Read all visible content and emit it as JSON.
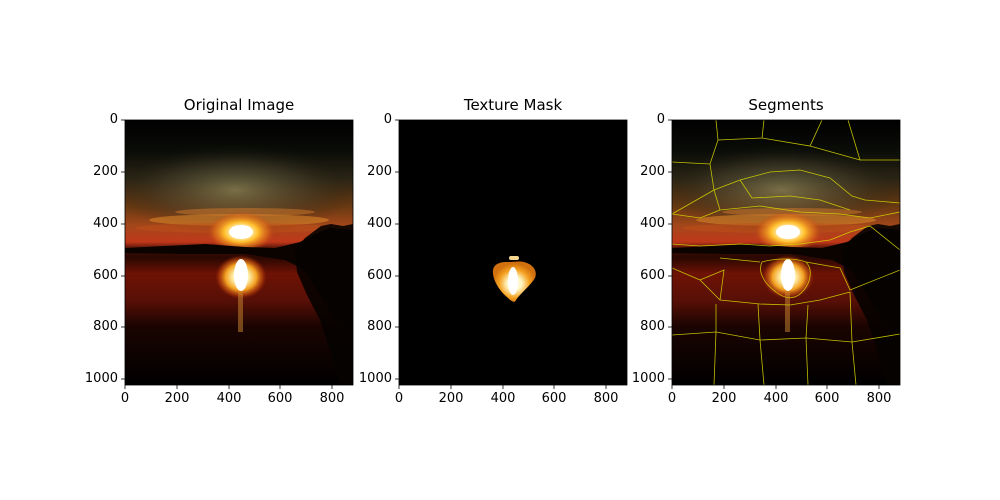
{
  "panels": [
    {
      "id": "original",
      "title": "Original Image"
    },
    {
      "id": "mask",
      "title": "Texture Mask"
    },
    {
      "id": "segments",
      "title": "Segments"
    }
  ],
  "x_ticks": [
    "0",
    "200",
    "400",
    "600",
    "800"
  ],
  "y_ticks": [
    "0",
    "200",
    "400",
    "600",
    "800",
    "1000"
  ],
  "colors": {
    "background": "#ffffff",
    "boundary": "#d4d400",
    "sky_dark": "#0a0b06",
    "sun": "#fff6c8",
    "glow_orange": "#e07a10",
    "deep_red": "#5a0e00",
    "mask_black": "#000000",
    "mask_white": "#ffffff"
  }
}
